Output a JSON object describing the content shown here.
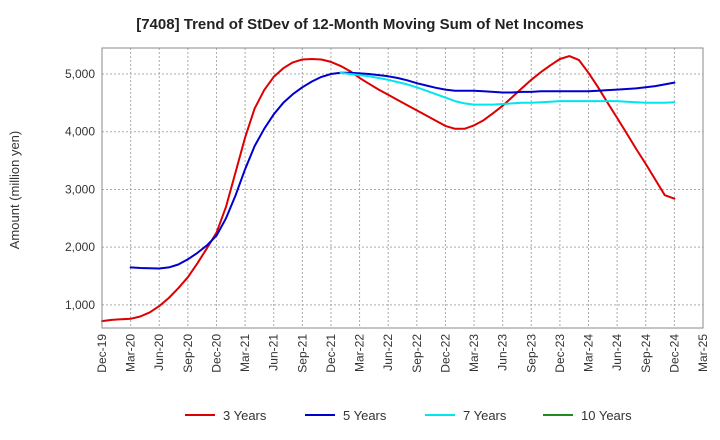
{
  "chart_data": {
    "type": "line",
    "title": "[7408]  Trend of StDev of 12-Month Moving Sum of Net Incomes",
    "ylabel": "Amount (million yen)",
    "xlabel": "",
    "ylim": [
      600,
      5450
    ],
    "yticks": [
      1000,
      2000,
      3000,
      4000,
      5000
    ],
    "ytick_labels": [
      "1,000",
      "2,000",
      "3,000",
      "4,000",
      "5,000"
    ],
    "x_tick_labels": [
      "Dec-19",
      "Mar-20",
      "Jun-20",
      "Sep-20",
      "Dec-20",
      "Mar-21",
      "Jun-21",
      "Sep-21",
      "Dec-21",
      "Mar-22",
      "Jun-22",
      "Sep-22",
      "Dec-22",
      "Mar-23",
      "Jun-23",
      "Sep-23",
      "Dec-23",
      "Mar-24",
      "Jun-24",
      "Sep-24",
      "Dec-24",
      "Mar-25"
    ],
    "grid": true,
    "legend_position": "bottom",
    "series": [
      {
        "name": "3 Years",
        "color": "#dd0000",
        "points": [
          [
            0,
            720
          ],
          [
            1,
            740
          ],
          [
            2,
            750
          ],
          [
            3,
            760
          ],
          [
            4,
            800
          ],
          [
            5,
            870
          ],
          [
            6,
            980
          ],
          [
            7,
            1120
          ],
          [
            8,
            1290
          ],
          [
            9,
            1480
          ],
          [
            10,
            1720
          ],
          [
            11,
            1980
          ],
          [
            12,
            2250
          ],
          [
            13,
            2700
          ],
          [
            14,
            3300
          ],
          [
            15,
            3900
          ],
          [
            16,
            4400
          ],
          [
            17,
            4720
          ],
          [
            18,
            4950
          ],
          [
            19,
            5100
          ],
          [
            20,
            5200
          ],
          [
            21,
            5250
          ],
          [
            22,
            5260
          ],
          [
            23,
            5250
          ],
          [
            24,
            5210
          ],
          [
            25,
            5140
          ],
          [
            26,
            5050
          ],
          [
            27,
            4930
          ],
          [
            28,
            4830
          ],
          [
            29,
            4730
          ],
          [
            30,
            4640
          ],
          [
            31,
            4550
          ],
          [
            32,
            4460
          ],
          [
            33,
            4370
          ],
          [
            34,
            4280
          ],
          [
            35,
            4190
          ],
          [
            36,
            4100
          ],
          [
            37,
            4050
          ],
          [
            38,
            4050
          ],
          [
            39,
            4110
          ],
          [
            40,
            4200
          ],
          [
            41,
            4320
          ],
          [
            42,
            4450
          ],
          [
            43,
            4600
          ],
          [
            44,
            4750
          ],
          [
            45,
            4900
          ],
          [
            46,
            5030
          ],
          [
            47,
            5150
          ],
          [
            48,
            5260
          ],
          [
            49,
            5310
          ],
          [
            50,
            5240
          ],
          [
            51,
            5020
          ],
          [
            52,
            4770
          ],
          [
            53,
            4500
          ],
          [
            54,
            4240
          ],
          [
            55,
            3970
          ],
          [
            56,
            3700
          ],
          [
            57,
            3440
          ],
          [
            58,
            3170
          ],
          [
            59,
            2900
          ],
          [
            60,
            2840
          ]
        ]
      },
      {
        "name": "5 Years",
        "color": "#0000cc",
        "points": [
          [
            3,
            1650
          ],
          [
            4,
            1640
          ],
          [
            5,
            1635
          ],
          [
            6,
            1630
          ],
          [
            7,
            1650
          ],
          [
            8,
            1700
          ],
          [
            9,
            1790
          ],
          [
            10,
            1900
          ],
          [
            11,
            2030
          ],
          [
            12,
            2200
          ],
          [
            13,
            2500
          ],
          [
            14,
            2900
          ],
          [
            15,
            3350
          ],
          [
            16,
            3750
          ],
          [
            17,
            4050
          ],
          [
            18,
            4300
          ],
          [
            19,
            4500
          ],
          [
            20,
            4650
          ],
          [
            21,
            4770
          ],
          [
            22,
            4870
          ],
          [
            23,
            4950
          ],
          [
            24,
            5000
          ],
          [
            25,
            5020
          ],
          [
            26,
            5020
          ],
          [
            27,
            5010
          ],
          [
            28,
            5000
          ],
          [
            29,
            4980
          ],
          [
            30,
            4960
          ],
          [
            31,
            4930
          ],
          [
            32,
            4890
          ],
          [
            33,
            4840
          ],
          [
            34,
            4800
          ],
          [
            35,
            4760
          ],
          [
            36,
            4730
          ],
          [
            37,
            4710
          ],
          [
            38,
            4710
          ],
          [
            39,
            4710
          ],
          [
            40,
            4700
          ],
          [
            41,
            4690
          ],
          [
            42,
            4680
          ],
          [
            43,
            4680
          ],
          [
            44,
            4690
          ],
          [
            45,
            4690
          ],
          [
            46,
            4700
          ],
          [
            47,
            4700
          ],
          [
            48,
            4700
          ],
          [
            49,
            4700
          ],
          [
            50,
            4700
          ],
          [
            51,
            4700
          ],
          [
            52,
            4710
          ],
          [
            53,
            4720
          ],
          [
            54,
            4730
          ],
          [
            55,
            4740
          ],
          [
            56,
            4750
          ],
          [
            57,
            4770
          ],
          [
            58,
            4790
          ],
          [
            59,
            4820
          ],
          [
            60,
            4850
          ]
        ]
      },
      {
        "name": "7 Years",
        "color": "#00e5ee",
        "points": [
          [
            25,
            5020
          ],
          [
            26,
            5000
          ],
          [
            27,
            4980
          ],
          [
            28,
            4960
          ],
          [
            29,
            4930
          ],
          [
            30,
            4900
          ],
          [
            31,
            4860
          ],
          [
            32,
            4820
          ],
          [
            33,
            4770
          ],
          [
            34,
            4710
          ],
          [
            35,
            4650
          ],
          [
            36,
            4590
          ],
          [
            37,
            4530
          ],
          [
            38,
            4490
          ],
          [
            39,
            4470
          ],
          [
            40,
            4470
          ],
          [
            41,
            4470
          ],
          [
            42,
            4480
          ],
          [
            43,
            4490
          ],
          [
            44,
            4500
          ],
          [
            45,
            4500
          ],
          [
            46,
            4510
          ],
          [
            47,
            4520
          ],
          [
            48,
            4530
          ],
          [
            49,
            4530
          ],
          [
            50,
            4530
          ],
          [
            51,
            4530
          ],
          [
            52,
            4530
          ],
          [
            53,
            4530
          ],
          [
            54,
            4530
          ],
          [
            55,
            4520
          ],
          [
            56,
            4510
          ],
          [
            57,
            4500
          ],
          [
            58,
            4500
          ],
          [
            59,
            4500
          ],
          [
            60,
            4510
          ]
        ]
      },
      {
        "name": "10 Years",
        "color": "#228b22",
        "points": []
      }
    ]
  }
}
